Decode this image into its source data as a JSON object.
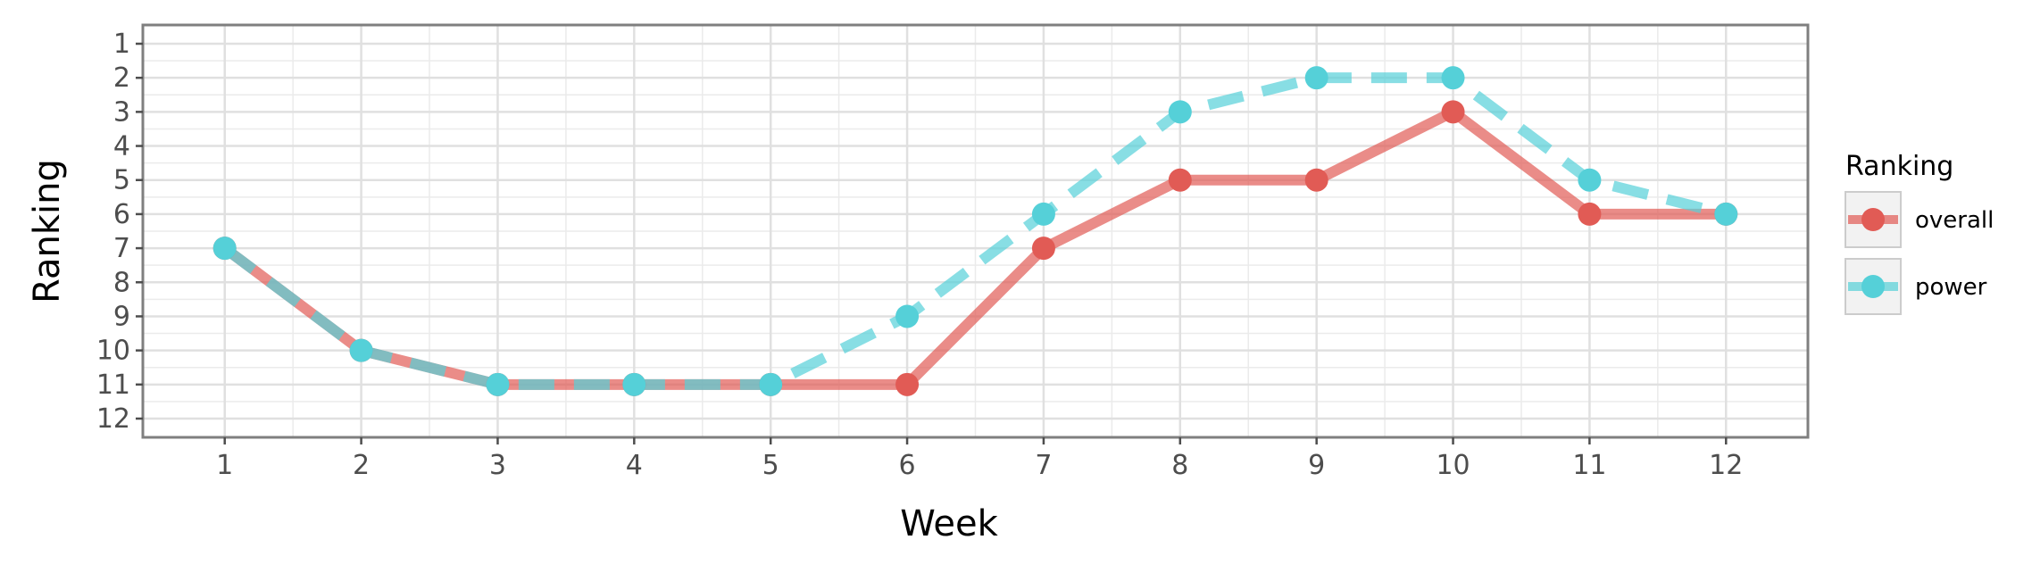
{
  "chart_data": {
    "type": "line",
    "xlabel": "Week",
    "ylabel": "Ranking",
    "x": [
      1,
      2,
      3,
      4,
      5,
      6,
      7,
      8,
      9,
      10,
      11,
      12
    ],
    "xlim": [
      0.4,
      12.6
    ],
    "ylim": [
      12.55,
      0.45
    ],
    "y_reversed": true,
    "x_ticks": [
      "1",
      "2",
      "3",
      "4",
      "5",
      "6",
      "7",
      "8",
      "9",
      "10",
      "11",
      "12"
    ],
    "y_ticks": [
      "1",
      "2",
      "3",
      "4",
      "5",
      "6",
      "7",
      "8",
      "9",
      "10",
      "11",
      "12"
    ],
    "grid": true,
    "legend": {
      "title": "Ranking",
      "placement": "right"
    },
    "series": [
      {
        "name": "overall",
        "color": "#e15b55",
        "line_style": "solid",
        "values": [
          7,
          10,
          11,
          11,
          11,
          11,
          7,
          5,
          5,
          3,
          6,
          6
        ]
      },
      {
        "name": "power",
        "color": "#55d0d8",
        "line_style": "dashed",
        "values": [
          7,
          10,
          11,
          11,
          11,
          9,
          6,
          3,
          2,
          2,
          5,
          6
        ]
      }
    ]
  }
}
